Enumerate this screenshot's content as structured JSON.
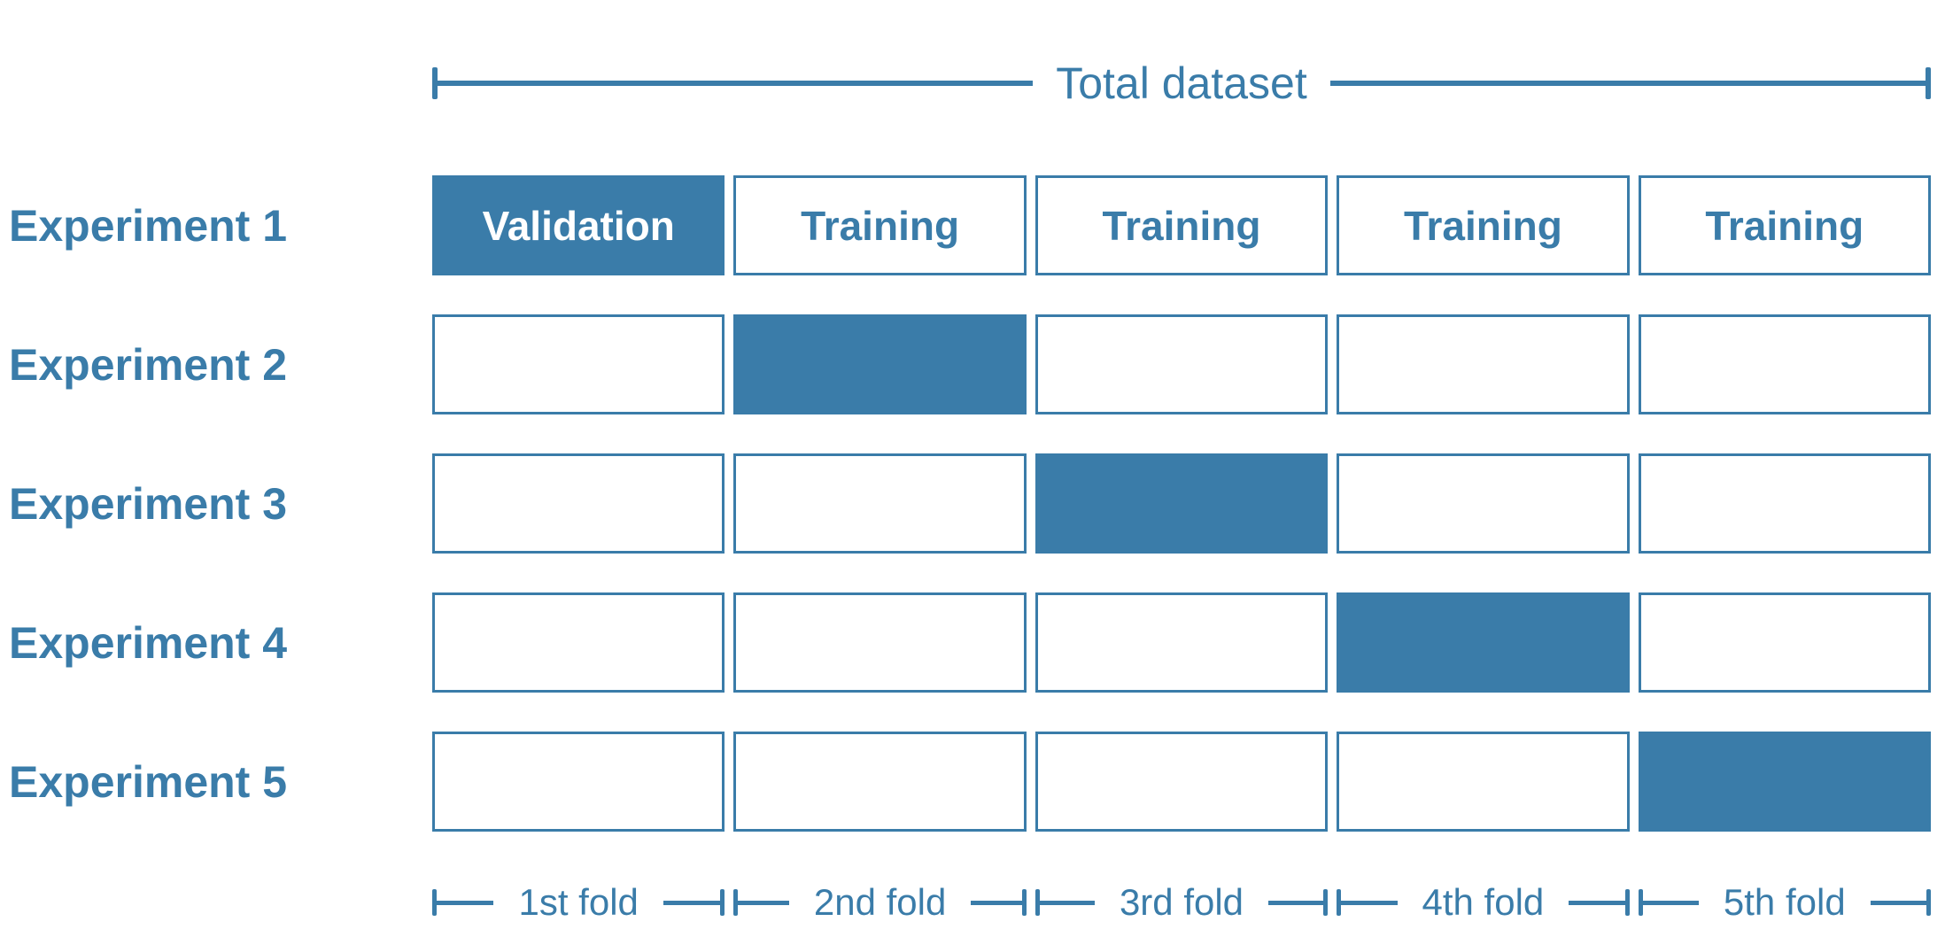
{
  "colors": {
    "accent": "#3A7CA9",
    "filled_cell_text": "#FFFFFF",
    "background": "#FFFFFF"
  },
  "total_dataset": {
    "label": "Total dataset"
  },
  "experiments": [
    {
      "label": "Experiment 1",
      "cells": [
        {
          "text": "Validation",
          "filled": true
        },
        {
          "text": "Training",
          "filled": false
        },
        {
          "text": "Training",
          "filled": false
        },
        {
          "text": "Training",
          "filled": false
        },
        {
          "text": "Training",
          "filled": false
        }
      ]
    },
    {
      "label": "Experiment 2",
      "cells": [
        {
          "filled": false
        },
        {
          "filled": true
        },
        {
          "filled": false
        },
        {
          "filled": false
        },
        {
          "filled": false
        }
      ]
    },
    {
      "label": "Experiment 3",
      "cells": [
        {
          "filled": false
        },
        {
          "filled": false
        },
        {
          "filled": true
        },
        {
          "filled": false
        },
        {
          "filled": false
        }
      ]
    },
    {
      "label": "Experiment 4",
      "cells": [
        {
          "filled": false
        },
        {
          "filled": false
        },
        {
          "filled": false
        },
        {
          "filled": true
        },
        {
          "filled": false
        }
      ]
    },
    {
      "label": "Experiment 5",
      "cells": [
        {
          "filled": false
        },
        {
          "filled": false
        },
        {
          "filled": false
        },
        {
          "filled": false
        },
        {
          "filled": true
        }
      ]
    }
  ],
  "folds": {
    "labels": [
      "1st fold",
      "2nd fold",
      "3rd fold",
      "4th fold",
      "5th fold"
    ]
  }
}
